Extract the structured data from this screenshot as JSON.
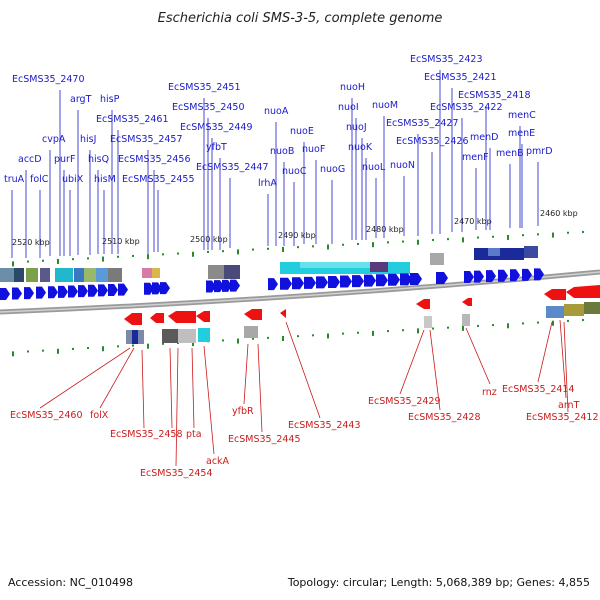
{
  "title": "Escherichia coli SMS-3-5, complete genome",
  "footer": {
    "accession": "Accession: NC_010498",
    "summary": "Topology: circular; Length: 5,068,389 bp; Genes: 4,855"
  },
  "colors": {
    "forward_gene": "#1111dd",
    "reverse_gene": "#ee1111",
    "top_label": "#1a1acc",
    "bottom_label": "#cc1a1a",
    "tick": "#2a8a2a",
    "backbone": "#777777"
  },
  "ticks": [
    "2520 kbp",
    "2510 kbp",
    "2500 kbp",
    "2490 kbp",
    "2480 kbp",
    "2470 kbp",
    "2460 kbp"
  ],
  "top_genes": [
    "truA",
    "accD",
    "folC",
    "cvpA",
    "purF",
    "ubiX",
    "argT",
    "hisJ",
    "hisQ",
    "hisM",
    "hisP",
    "EcSMS35_2470",
    "EcSMS35_2461",
    "EcSMS35_2457",
    "EcSMS35_2456",
    "EcSMS35_2455",
    "EcSMS35_2451",
    "EcSMS35_2450",
    "EcSMS35_2449",
    "yfbT",
    "EcSMS35_2447",
    "lrhA",
    "nuoA",
    "nuoB",
    "nuoC",
    "nuoE",
    "nuoF",
    "nuoG",
    "nuoH",
    "nuoI",
    "nuoJ",
    "nuoK",
    "nuoL",
    "nuoM",
    "nuoN",
    "EcSMS35_2427",
    "EcSMS35_2426",
    "EcSMS35_2423",
    "EcSMS35_2421",
    "EcSMS35_2422",
    "EcSMS35_2418",
    "menF",
    "menD",
    "menC",
    "menB",
    "menE",
    "pmrD"
  ],
  "bottom_genes": [
    "EcSMS35_2460",
    "folX",
    "EcSMS35_2458",
    "pta",
    "EcSMS35_2454",
    "ackA",
    "yfbR",
    "EcSMS35_2445",
    "EcSMS35_2443",
    "EcSMS35_2429",
    "EcSMS35_2428",
    "rnz",
    "EcSMS35_2414",
    "arnT",
    "EcSMS35_2412"
  ]
}
